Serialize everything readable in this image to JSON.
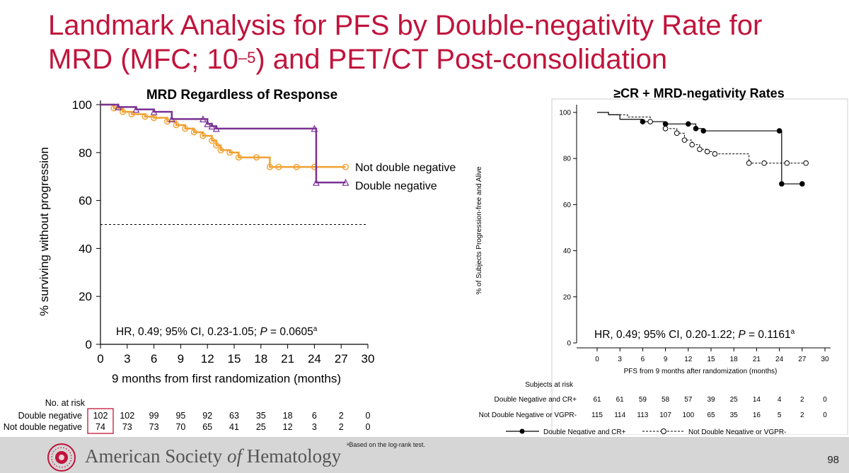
{
  "slide": {
    "title_line1": "Landmark Analysis for PFS by Double-negativity Rate for",
    "title_line2_a": "MRD (MFC; 10",
    "title_line2_sup": "–5",
    "title_line2_b": ") and PET/CT Post-consolidation",
    "page_number": "98",
    "footnote": "ᵃBased on the log-rank test.",
    "logo": {
      "pre": "American Society ",
      "italic": "of",
      "post": " Hematology"
    }
  },
  "chart_data": [
    {
      "type": "line",
      "title": "MRD Regardless of Response",
      "xlabel": "9 months from first randomization (months)",
      "ylabel": "% surviving without progression",
      "xlim": [
        0,
        30
      ],
      "ylim": [
        0,
        100
      ],
      "xticks": [
        "0",
        "3",
        "6",
        "9",
        "12",
        "15",
        "18",
        "21",
        "24",
        "27",
        "30"
      ],
      "yticks": [
        "0",
        "20",
        "40",
        "60",
        "80",
        "100"
      ],
      "reference_line_y": 50,
      "annotation": {
        "main": "HR, 0.49; 95% CI, 0.23-1.05; ",
        "p": "P",
        "rest": " = 0.0605",
        "sup": "a"
      },
      "colors": {
        "Double negative": "#7b3294",
        "Not double negative": "#f0a030"
      },
      "series": [
        {
          "name": "Not double negative",
          "x": [
            0,
            1.5,
            2.5,
            3.5,
            5,
            6,
            7.5,
            8.5,
            9.5,
            10.5,
            11.5,
            12.5,
            13,
            13.5,
            14.5,
            15.5,
            17.5,
            19,
            20,
            22,
            24,
            27.5
          ],
          "y": [
            100,
            98.5,
            97,
            96,
            95,
            94.5,
            93,
            91.5,
            90,
            88.5,
            87,
            85,
            83,
            81,
            80,
            78,
            78,
            74,
            74,
            74,
            74,
            74
          ]
        },
        {
          "name": "Double negative",
          "x": [
            0,
            2,
            4,
            6,
            8,
            11.5,
            12,
            12.5,
            13,
            24,
            24.2,
            27.5
          ],
          "y": [
            100,
            99,
            98,
            97,
            94,
            94,
            92,
            91,
            90,
            90,
            67.5,
            67.5
          ]
        }
      ],
      "risk_table": {
        "header": "No. at risk",
        "rows": [
          {
            "label": "Double negative",
            "values": [
              "102",
              "102",
              "99",
              "95",
              "92",
              "63",
              "35",
              "18",
              "6",
              "2",
              "0"
            ]
          },
          {
            "label": "Not double negative",
            "values": [
              "74",
              "73",
              "73",
              "70",
              "65",
              "41",
              "25",
              "12",
              "3",
              "2",
              "0"
            ]
          }
        ]
      }
    },
    {
      "type": "line",
      "title": "≥CR + MRD-negativity Rates",
      "xlabel": "PFS from 9 months after randomization (months)",
      "ylabel": "% of Subjects Progression-free and Alive",
      "xlim": [
        0,
        30
      ],
      "ylim": [
        0,
        100
      ],
      "xticks": [
        "0",
        "3",
        "6",
        "9",
        "12",
        "15",
        "18",
        "21",
        "24",
        "27",
        "30"
      ],
      "yticks": [
        "0",
        "20",
        "40",
        "60",
        "80",
        "100"
      ],
      "annotation": {
        "main": "HR, 0.49; 95% CI, 0.20-1.22; ",
        "p": "P",
        "rest": " = 0.1161",
        "sup": "a"
      },
      "series": [
        {
          "name": "Double Negative and CR+",
          "x": [
            0,
            1.5,
            3,
            6,
            9,
            12,
            13,
            14,
            24,
            24.3,
            27
          ],
          "y": [
            100,
            99,
            97,
            96,
            95,
            95,
            93,
            92,
            92,
            69,
            69
          ]
        },
        {
          "name": "Not Double Negative or VGPR-",
          "x": [
            0,
            1.5,
            4,
            7,
            9,
            10.5,
            11.5,
            12.5,
            13.5,
            14.5,
            15.5,
            20,
            22,
            25,
            27.5
          ],
          "y": [
            100,
            99,
            98,
            96,
            93,
            91,
            88,
            86,
            84,
            83,
            82,
            78,
            78,
            78,
            78
          ]
        }
      ],
      "risk_table": {
        "header": "Subjects at risk",
        "rows": [
          {
            "label": "Double Negative and CR+",
            "values": [
              "61",
              "61",
              "59",
              "58",
              "57",
              "39",
              "25",
              "14",
              "4",
              "2",
              "0"
            ]
          },
          {
            "label": "Not Double Negative or VGPR-",
            "values": [
              "115",
              "114",
              "113",
              "107",
              "100",
              "65",
              "35",
              "16",
              "5",
              "2",
              "0"
            ]
          }
        ]
      },
      "legend": [
        "Double Negative and CR+",
        "Not Double Negative or VGPR-"
      ]
    }
  ]
}
